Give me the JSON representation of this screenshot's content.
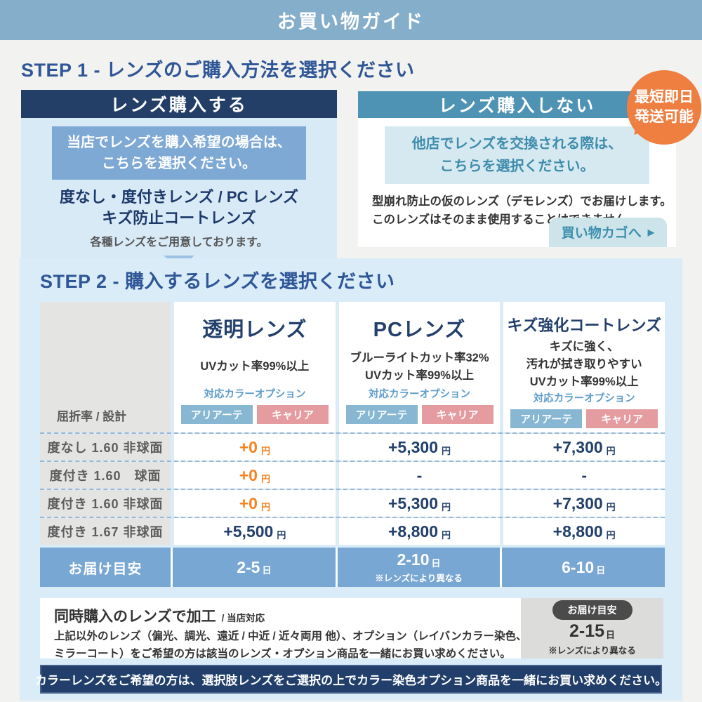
{
  "colors": {
    "topbar_blue": "#85aecb",
    "navy": "#22406b",
    "heading_blue": "#2f5697",
    "teal_header": "#4e92b4",
    "panel_blue": "#d9ecf8",
    "box_body_blue": "#d9eaf7",
    "highlight_blue": "#7ea9d4",
    "highlight_teal_bg": "#d6e9f0",
    "highlight_teal_text": "#3e8cac",
    "badge_orange": "#ef7f41",
    "price_orange": "#f6831f",
    "chip_blue": "#87b7d3",
    "chip_pink": "#e59ca1",
    "delivery_blue": "#79a7d3"
  },
  "topbar": {
    "title": "お買い物ガイド"
  },
  "step1": {
    "heading": "STEP 1 - レンズのご購入方法を選択ください",
    "buy_box": {
      "title": "レンズ購入する",
      "highlight": [
        "当店でレンズを購入希望の場合は、",
        "こちらを選択ください。"
      ],
      "lens_types": [
        "度なし・度付きレンズ / PC レンズ",
        "キズ防止コートレンズ"
      ],
      "note": "各種レンズをご用意しております。"
    },
    "no_buy_box": {
      "title": "レンズ購入しない",
      "highlight": [
        "他店でレンズを交換される際は、",
        "こちらを選択ください。"
      ],
      "body": [
        "型崩れ防止の仮のレンズ（デモレンズ）でお届けします。",
        "このレンズはそのまま使用することはできません。"
      ],
      "cart_button": "買い物カゴへ",
      "cart_arrow": "▶"
    },
    "badge": {
      "line1": "最短即日",
      "line2": "発送可能"
    }
  },
  "step2": {
    "heading": "STEP 2 - 購入するレンズを選択ください",
    "table": {
      "corner_label": "屈折率 / 設計",
      "color_option_label": "対応カラーオプション",
      "chip_blue": "アリアーテ",
      "chip_pink": "キャリア",
      "yen": "円",
      "day": "日",
      "columns": [
        {
          "title": "透明レンズ",
          "desc1": "UVカット率99%以上"
        },
        {
          "title": "PCレンズ",
          "desc1": "ブルーライトカット率32%",
          "desc2": "UVカット率99%以上"
        },
        {
          "title": "キズ強化コートレンズ",
          "desc1": "キズに強く、",
          "desc2": "汚れが拭き取りやすい",
          "desc3": "UVカット率99%以上"
        }
      ],
      "rows": [
        {
          "label": "度なし 1.60 非球面",
          "p1": "+0",
          "p2": "+5,300",
          "p3": "+7,300"
        },
        {
          "label": "度付き 1.60　球面",
          "p1": "+0",
          "p2": "-",
          "p3": "-"
        },
        {
          "label": "度付き 1.60 非球面",
          "p1": "+0",
          "p2": "+5,300",
          "p3": "+7,300"
        },
        {
          "label": "度付き 1.67 非球面",
          "p1": "+5,500",
          "p2": "+8,800",
          "p3": "+8,800"
        }
      ],
      "delivery": {
        "label": "お届け目安",
        "v1": "2-5",
        "v2": "2-10",
        "v2_note": "※レンズにより異なる",
        "v3": "6-10"
      }
    }
  },
  "footer_box": {
    "title": "同時購入のレンズで加工",
    "title_suffix": "/ 当店対応",
    "body": [
      "上記以外のレンズ（偏光、調光、遠近 / 中近 / 近々両用 他）、オプション（レイバンカラー染色、",
      "ミラーコート）をご希望の方は該当のレンズ・オプション商品を一緒にお買い求めください。"
    ],
    "delivery": {
      "pill": "お届け目安",
      "value": "2-15",
      "day": "日",
      "note": "※レンズにより異なる"
    }
  },
  "bottom_bar": {
    "text": "カラーレンズをご希望の方は、選択肢レンズをご選択の上でカラー染色オプション商品を一緒にお買い求めください。"
  }
}
